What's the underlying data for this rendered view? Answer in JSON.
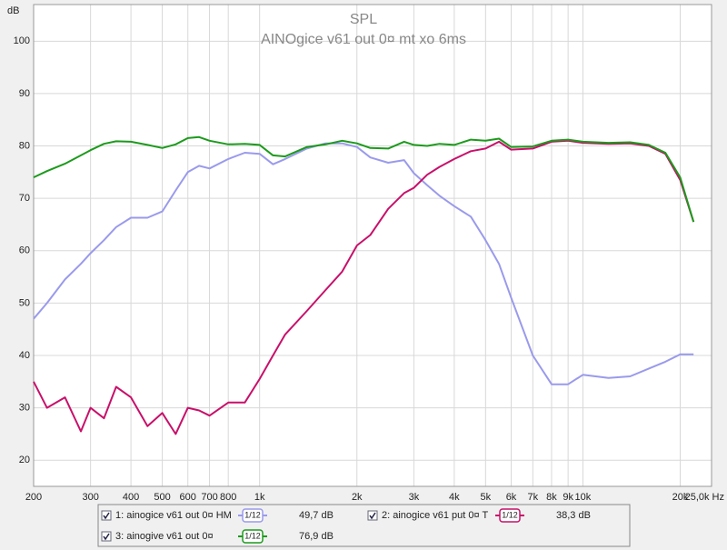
{
  "chart_data": {
    "type": "line",
    "title": "SPL",
    "subtitle": "AINOgice v61 out 0¤ mt xo 6ms",
    "y_label": "dB",
    "xscale": "log",
    "grid": true,
    "xlim": [
      200,
      25000
    ],
    "ylim": [
      15,
      107
    ],
    "xticks": [
      200,
      300,
      400,
      500,
      600,
      700,
      800,
      {
        "value": 1000,
        "label": "1k"
      },
      {
        "value": 2000,
        "label": "2k"
      },
      {
        "value": 3000,
        "label": "3k"
      },
      {
        "value": 4000,
        "label": "4k"
      },
      {
        "value": 5000,
        "label": "5k"
      },
      {
        "value": 6000,
        "label": "6k"
      },
      {
        "value": 7000,
        "label": "7k"
      },
      {
        "value": 8000,
        "label": "8k"
      },
      {
        "value": 9000,
        "label": "9k"
      },
      {
        "value": 10000,
        "label": "10k"
      },
      {
        "value": 20000,
        "label": "20k"
      },
      {
        "value": 25000,
        "label": "25,0k Hz"
      }
    ],
    "yticks": [
      20,
      30,
      40,
      50,
      60,
      70,
      80,
      90,
      100
    ],
    "x": [
      200,
      220,
      250,
      280,
      300,
      330,
      360,
      400,
      450,
      500,
      550,
      600,
      650,
      700,
      800,
      900,
      1000,
      1100,
      1200,
      1400,
      1600,
      1800,
      2000,
      2200,
      2500,
      2800,
      3000,
      3300,
      3600,
      4000,
      4500,
      5000,
      5500,
      6000,
      7000,
      8000,
      9000,
      10000,
      12000,
      14000,
      16000,
      18000,
      20000,
      22000
    ],
    "series": [
      {
        "name": "1: ainogice v61 out 0¤ HM",
        "color": "#9a9aec",
        "smoothing": "1/12",
        "legend_value": "49,7 dB",
        "values": [
          47,
          50,
          54.5,
          57.5,
          59.5,
          62,
          64.5,
          66.3,
          66.3,
          67.5,
          71.5,
          75,
          76.2,
          75.7,
          77.5,
          78.7,
          78.5,
          76.5,
          77.5,
          79.5,
          80.5,
          80.5,
          79.8,
          77.8,
          76.8,
          77.3,
          74.8,
          72.5,
          70.5,
          68.5,
          66.5,
          62,
          57.5,
          51,
          40,
          34.5,
          34.5,
          36.3,
          35.7,
          36,
          37.5,
          38.8,
          40.2,
          40.2
        ]
      },
      {
        "name": "2: ainogice v61 put 0¤ T",
        "color": "#c8106a",
        "smoothing": "1/12",
        "legend_value": "38,3 dB",
        "values": [
          35,
          30,
          32,
          25.5,
          30,
          28,
          34,
          32,
          26.5,
          29,
          25,
          30,
          29.5,
          28.5,
          31,
          31,
          35.5,
          40,
          44,
          48.5,
          52.5,
          56,
          61,
          63,
          68,
          71,
          72,
          74.5,
          76,
          77.5,
          79,
          79.5,
          80.8,
          79.3,
          79.5,
          80.8,
          81,
          80.6,
          80.4,
          80.5,
          80,
          78.5,
          73.5,
          65.5
        ]
      },
      {
        "name": "3: ainogive v61 out 0¤",
        "color": "#1c9a1c",
        "smoothing": "1/12",
        "legend_value": "76,9 dB",
        "values": [
          74,
          75.2,
          76.6,
          78.2,
          79.2,
          80.4,
          80.9,
          80.8,
          80.2,
          79.6,
          80.3,
          81.5,
          81.7,
          81,
          80.3,
          80.4,
          80.2,
          78.2,
          78,
          79.8,
          80.3,
          81,
          80.5,
          79.6,
          79.5,
          80.8,
          80.2,
          80,
          80.4,
          80.2,
          81.2,
          81,
          81.4,
          79.8,
          79.9,
          81,
          81.2,
          80.8,
          80.6,
          80.7,
          80.2,
          78.7,
          74,
          65.5
        ]
      }
    ]
  }
}
